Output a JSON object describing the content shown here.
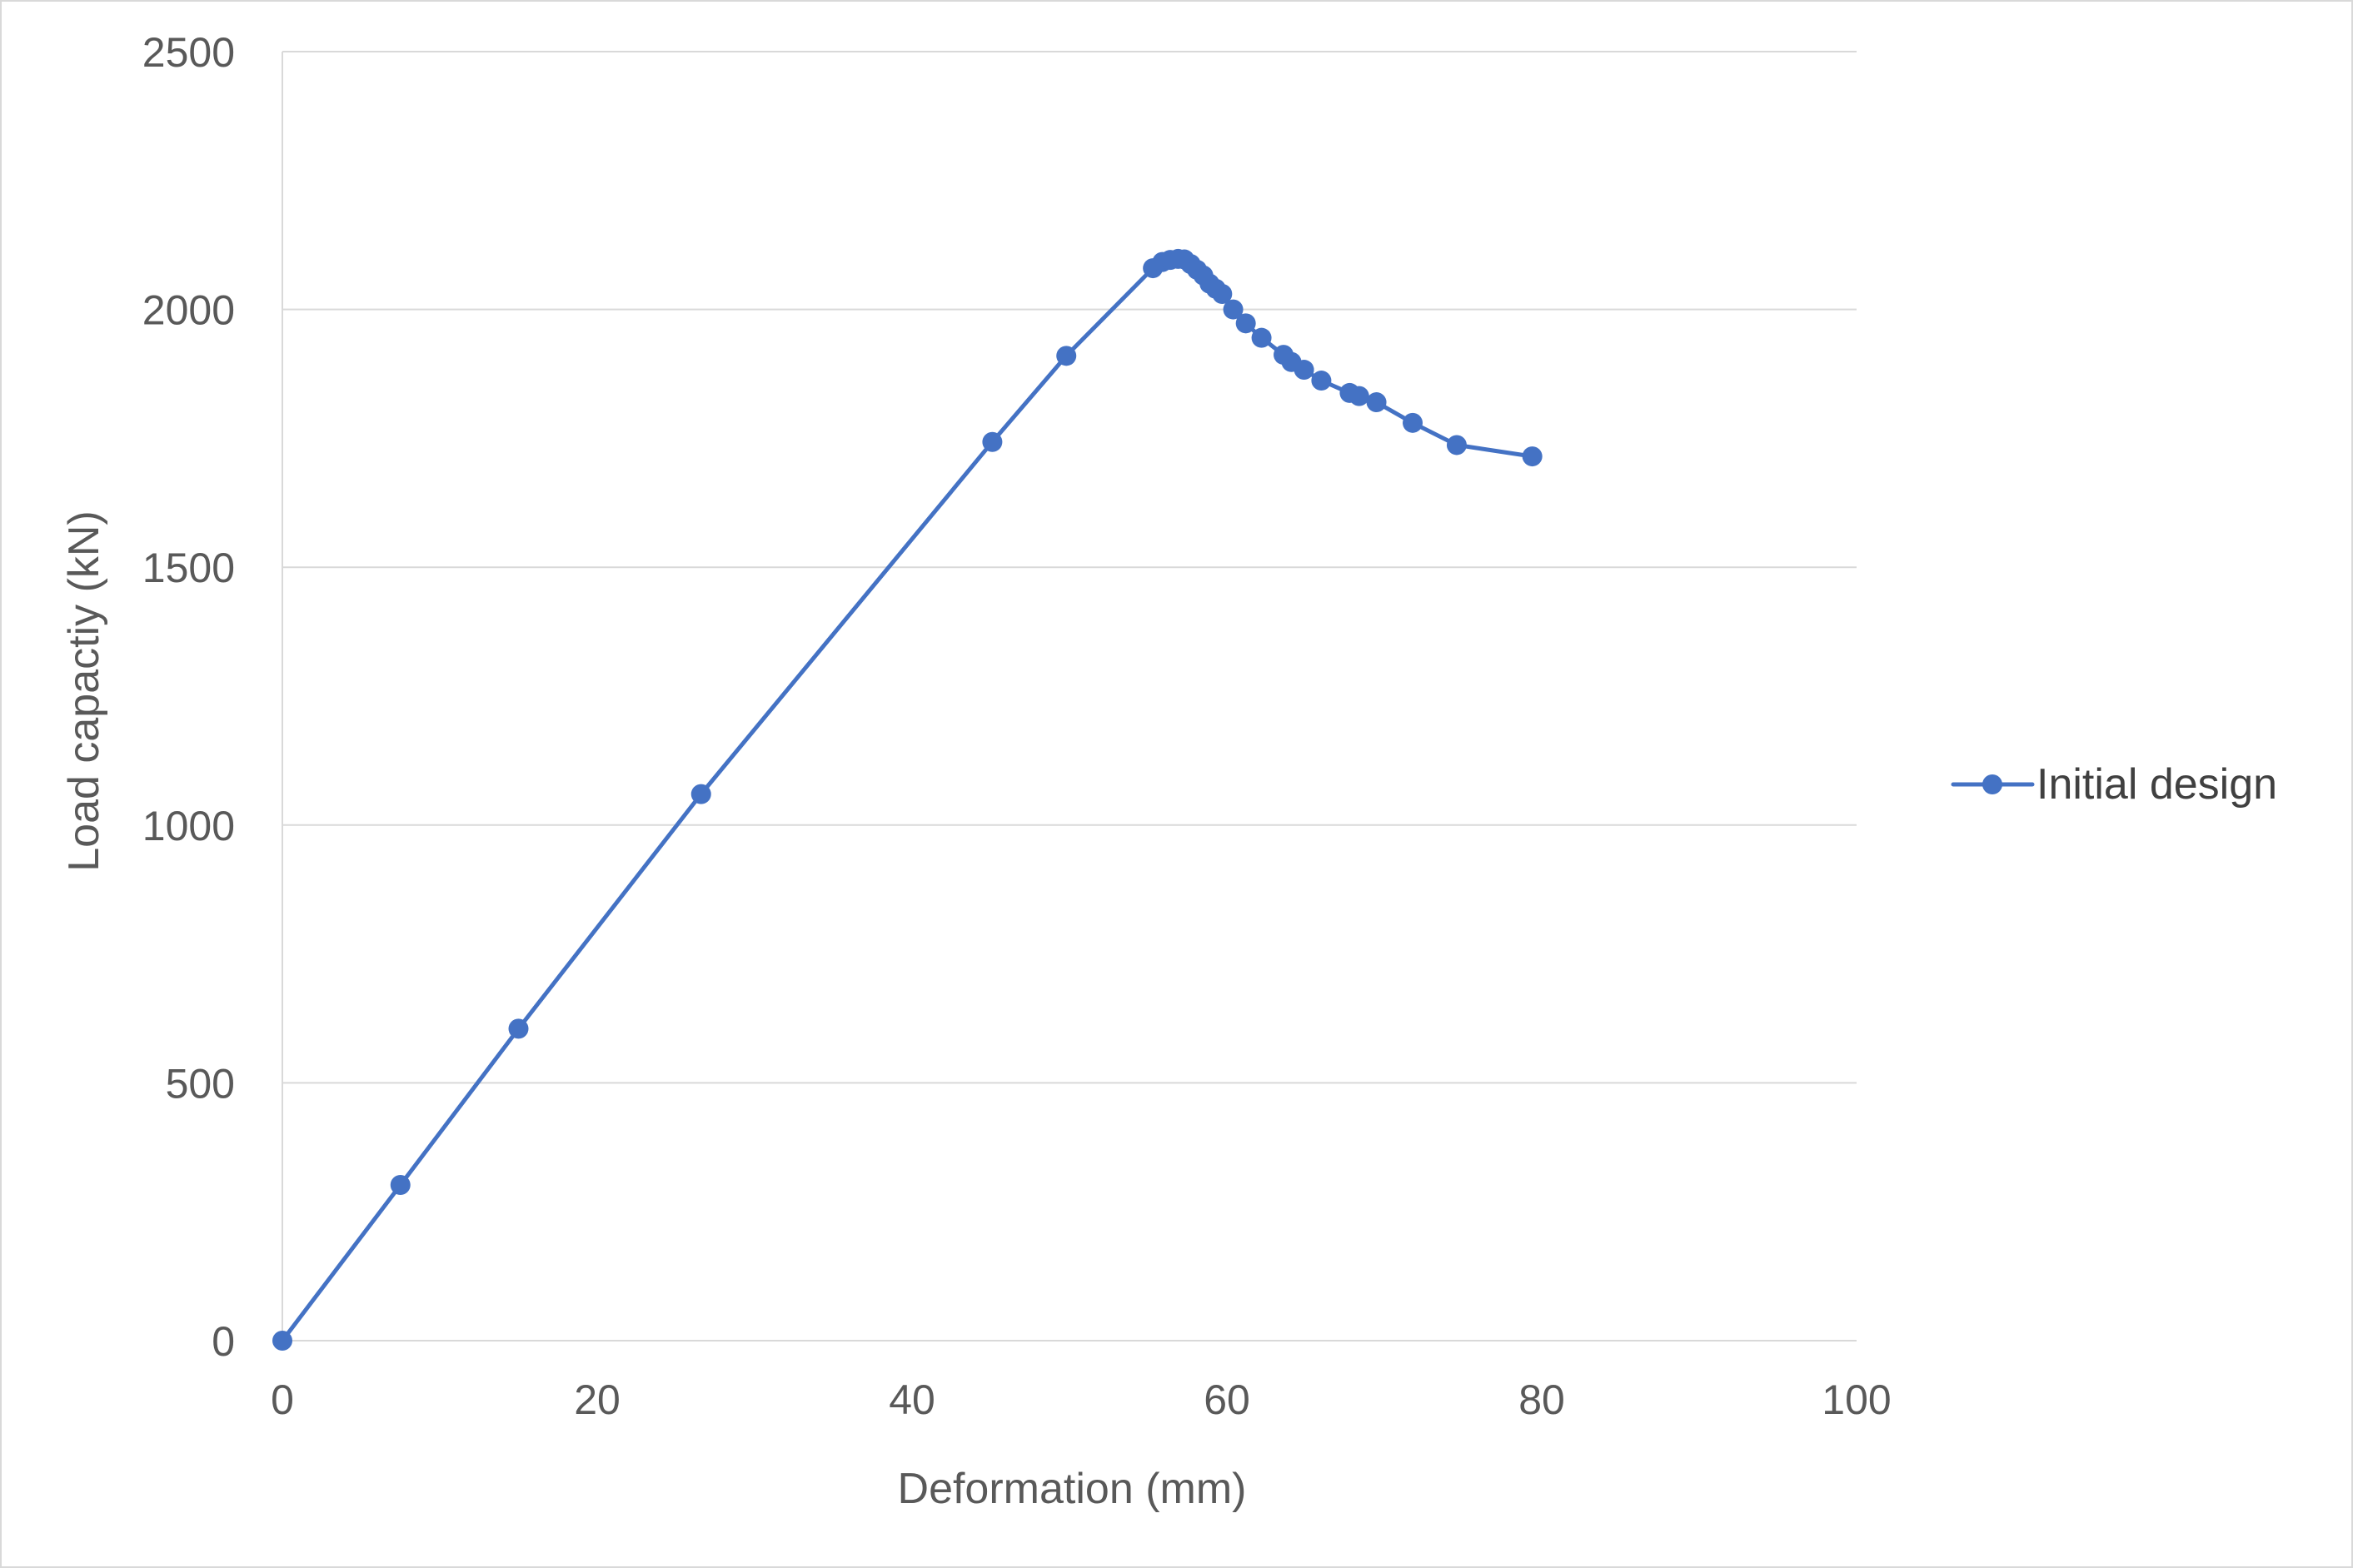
{
  "chart_data": {
    "type": "scatter",
    "style": "line-with-markers",
    "title": "",
    "xlabel": "Deformation (mm)",
    "ylabel": "Load capactiy (kN)",
    "xlim": [
      0,
      100
    ],
    "ylim": [
      0,
      2500
    ],
    "xticks": [
      0,
      20,
      40,
      60,
      80,
      100
    ],
    "yticks": [
      0,
      500,
      1000,
      1500,
      2000,
      2500
    ],
    "xtick_labels": [
      "0",
      "20",
      "40",
      "60",
      "80",
      "100"
    ],
    "ytick_labels": [
      "0",
      "500",
      "1000",
      "1500",
      "2000",
      "2500"
    ],
    "grid": "horizontal",
    "legend_position": "right",
    "series": [
      {
        "name": "Initial design",
        "color": "#4472c4",
        "points": [
          [
            0,
            0
          ],
          [
            7.5,
            302
          ],
          [
            15.0,
            605
          ],
          [
            26.6,
            1060
          ],
          [
            45.1,
            1743
          ],
          [
            49.8,
            1910
          ],
          [
            55.3,
            2080
          ],
          [
            55.9,
            2092
          ],
          [
            56.4,
            2096
          ],
          [
            56.9,
            2098
          ],
          [
            57.3,
            2097
          ],
          [
            57.7,
            2088
          ],
          [
            58.1,
            2077
          ],
          [
            58.5,
            2066
          ],
          [
            58.9,
            2050
          ],
          [
            59.3,
            2040
          ],
          [
            59.7,
            2030
          ],
          [
            60.4,
            2000
          ],
          [
            61.2,
            1973
          ],
          [
            62.2,
            1945
          ],
          [
            63.6,
            1912
          ],
          [
            64.1,
            1898
          ],
          [
            64.9,
            1883
          ],
          [
            66.0,
            1862
          ],
          [
            67.8,
            1838
          ],
          [
            68.4,
            1832
          ],
          [
            69.5,
            1820
          ],
          [
            71.8,
            1780
          ],
          [
            74.6,
            1737
          ],
          [
            79.4,
            1715
          ]
        ]
      }
    ]
  }
}
